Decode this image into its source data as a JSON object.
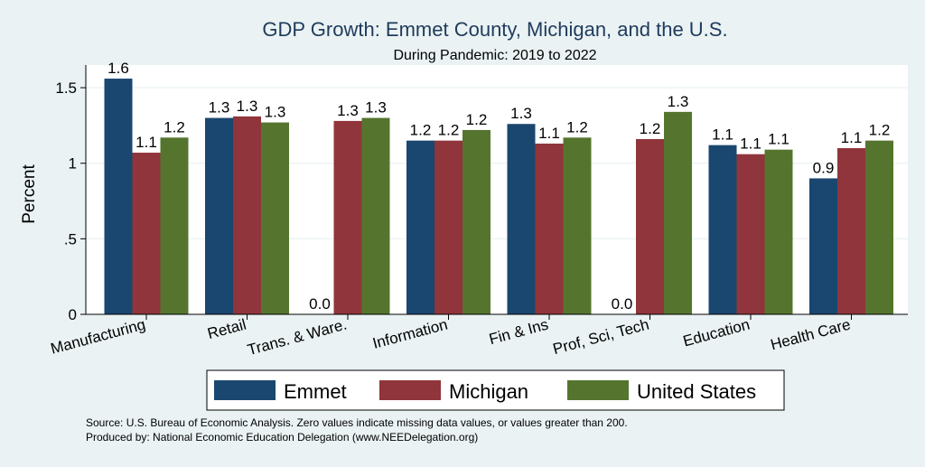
{
  "chart_data": {
    "type": "bar",
    "title": "GDP Growth: Emmet County, Michigan, and the U.S.",
    "subtitle": "During Pandemic: 2019 to 2022",
    "xlabel": "",
    "ylabel": "Percent",
    "ylim": [
      0,
      1.65
    ],
    "yticks": [
      0,
      0.5,
      1,
      1.5
    ],
    "ytick_labels": [
      "0",
      ".5",
      "1",
      "1.5"
    ],
    "grid": true,
    "categories": [
      "Manufacturing",
      "Retail",
      "Trans. & Ware.",
      "Information",
      "Fin & Ins",
      "Prof, Sci, Tech",
      "Education",
      "Health Care"
    ],
    "series": [
      {
        "name": "Emmet",
        "color": "#1a476f",
        "values": [
          1.56,
          1.3,
          0.0,
          1.15,
          1.26,
          0.0,
          1.12,
          0.9
        ],
        "labels": [
          "1.6",
          "1.3",
          "0.0",
          "1.2",
          "1.3",
          "0.0",
          "1.1",
          "0.9"
        ]
      },
      {
        "name": "Michigan",
        "color": "#90353b",
        "values": [
          1.07,
          1.31,
          1.28,
          1.15,
          1.13,
          1.16,
          1.06,
          1.1
        ],
        "labels": [
          "1.1",
          "1.3",
          "1.3",
          "1.2",
          "1.1",
          "1.2",
          "1.1",
          "1.1"
        ]
      },
      {
        "name": "United States",
        "color": "#55752f",
        "values": [
          1.17,
          1.27,
          1.3,
          1.22,
          1.17,
          1.34,
          1.09,
          1.15
        ],
        "labels": [
          "1.2",
          "1.3",
          "1.3",
          "1.2",
          "1.2",
          "1.3",
          "1.1",
          "1.2"
        ]
      }
    ],
    "legend": {
      "position": "bottom"
    },
    "notes": [
      "Source: U.S. Bureau of Economic Analysis. Zero values indicate missing data values, or values greater than 200.",
      "Produced by: National Economic Education Delegation (www.NEEDelegation.org)"
    ]
  }
}
